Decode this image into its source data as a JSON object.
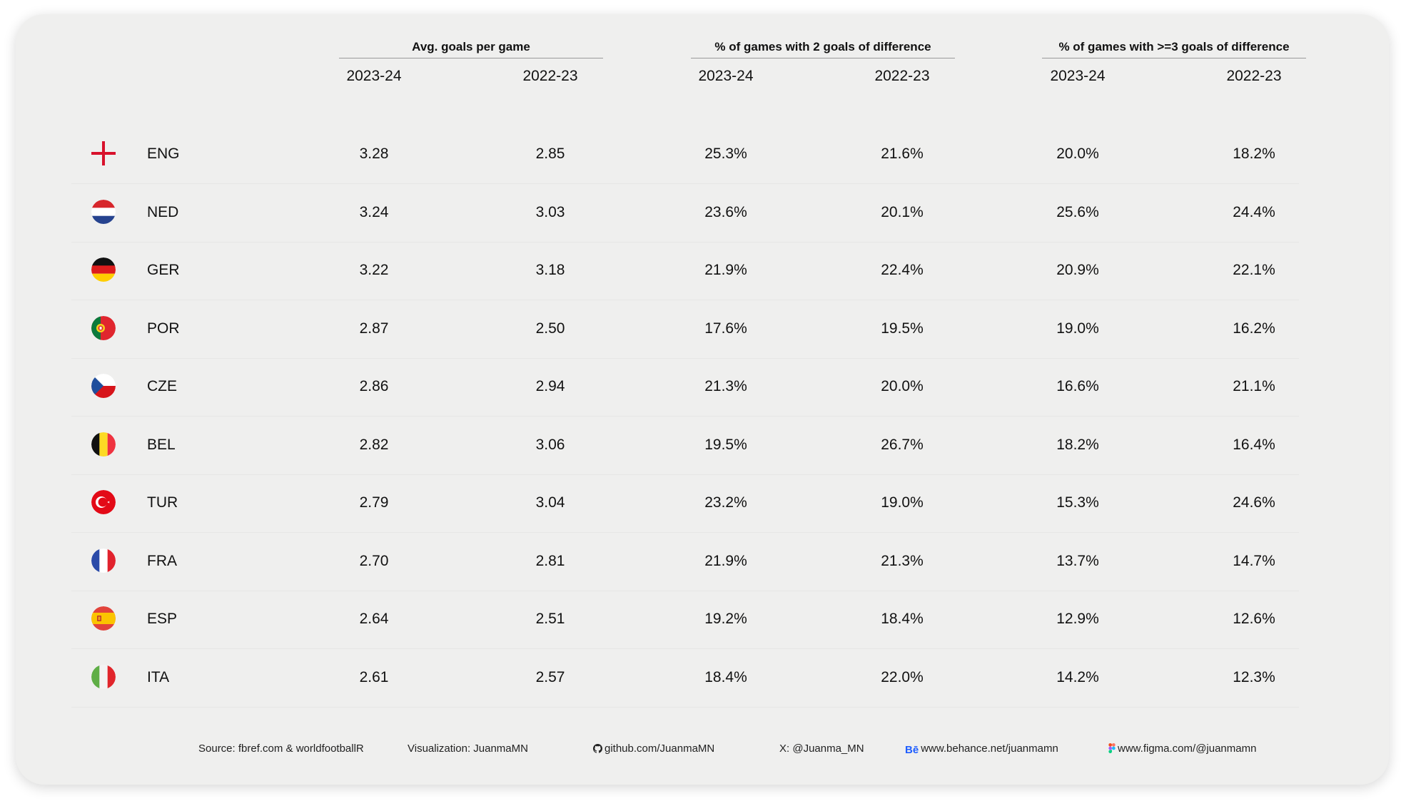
{
  "chart_data": {
    "type": "table",
    "column_groups": [
      {
        "title": "Avg. goals per game",
        "columns": [
          "2023-24",
          "2022-23"
        ]
      },
      {
        "title": "% of games with 2 goals of difference",
        "columns": [
          "2023-24",
          "2022-23"
        ]
      },
      {
        "title": "% of games with >=3 goals of difference",
        "columns": [
          "2023-24",
          "2022-23"
        ]
      }
    ],
    "rows": [
      {
        "code": "ENG",
        "flag": "england",
        "values": [
          "3.28",
          "2.85",
          "25.3%",
          "21.6%",
          "20.0%",
          "18.2%"
        ]
      },
      {
        "code": "NED",
        "flag": "netherlands",
        "values": [
          "3.24",
          "3.03",
          "23.6%",
          "20.1%",
          "25.6%",
          "24.4%"
        ]
      },
      {
        "code": "GER",
        "flag": "germany",
        "values": [
          "3.22",
          "3.18",
          "21.9%",
          "22.4%",
          "20.9%",
          "22.1%"
        ]
      },
      {
        "code": "POR",
        "flag": "portugal",
        "values": [
          "2.87",
          "2.50",
          "17.6%",
          "19.5%",
          "19.0%",
          "16.2%"
        ]
      },
      {
        "code": "CZE",
        "flag": "czechia",
        "values": [
          "2.86",
          "2.94",
          "21.3%",
          "20.0%",
          "16.6%",
          "21.1%"
        ]
      },
      {
        "code": "BEL",
        "flag": "belgium",
        "values": [
          "2.82",
          "3.06",
          "19.5%",
          "26.7%",
          "18.2%",
          "16.4%"
        ]
      },
      {
        "code": "TUR",
        "flag": "turkey",
        "values": [
          "2.79",
          "3.04",
          "23.2%",
          "19.0%",
          "15.3%",
          "24.6%"
        ]
      },
      {
        "code": "FRA",
        "flag": "france",
        "values": [
          "2.70",
          "2.81",
          "21.9%",
          "21.3%",
          "13.7%",
          "14.7%"
        ]
      },
      {
        "code": "ESP",
        "flag": "spain",
        "values": [
          "2.64",
          "2.51",
          "19.2%",
          "18.4%",
          "12.9%",
          "12.6%"
        ]
      },
      {
        "code": "ITA",
        "flag": "italy",
        "values": [
          "2.61",
          "2.57",
          "18.4%",
          "22.0%",
          "14.2%",
          "12.3%"
        ]
      }
    ]
  },
  "footer": {
    "source": "Source: fbref.com & worldfootballR",
    "visualization": "Visualization: JuanmaMN",
    "github": "github.com/JuanmaMN",
    "x": "X: @Juanma_MN",
    "behance": "www.behance.net/juanmamn",
    "figma": "www.figma.com/@juanmamn"
  },
  "icons": [
    "github-icon",
    "behance-icon",
    "figma-icon"
  ],
  "colors": {
    "card": "#efefee",
    "text": "#111111",
    "divider": "#9a9a9a"
  }
}
